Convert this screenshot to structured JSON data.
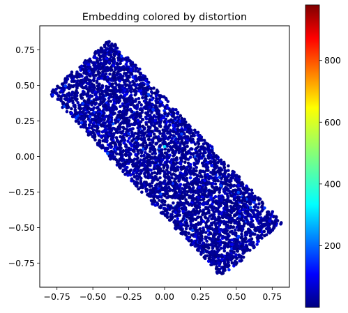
{
  "chart_data": {
    "type": "scatter",
    "title": "Embedding colored by distortion",
    "xlabel": "",
    "ylabel": "",
    "xlim": [
      -0.87,
      0.87
    ],
    "ylim": [
      -0.92,
      0.92
    ],
    "xticks": [
      -0.75,
      -0.5,
      -0.25,
      0.0,
      0.25,
      0.5,
      0.75
    ],
    "xtick_labels": [
      "−0.75",
      "−0.50",
      "−0.25",
      "0.00",
      "0.25",
      "0.50",
      "0.75"
    ],
    "yticks": [
      -0.75,
      -0.5,
      -0.25,
      0.0,
      0.25,
      0.5,
      0.75
    ],
    "ytick_labels": [
      "−0.75",
      "−0.50",
      "−0.25",
      "0.00",
      "0.25",
      "0.50",
      "0.75"
    ],
    "grid": false,
    "point_region": {
      "shape": "rotated-rectangle",
      "corners": [
        [
          -0.8,
          0.45
        ],
        [
          -0.38,
          0.83
        ],
        [
          0.82,
          -0.48
        ],
        [
          0.4,
          -0.85
        ]
      ],
      "note_value_range": "most points have distortion values near 0 to 100"
    },
    "highlight_points": [
      {
        "x": 0.0,
        "y": 0.07,
        "value": 330
      },
      {
        "x": -0.08,
        "y": 0.33,
        "value": 170
      },
      {
        "x": 0.6,
        "y": -0.36,
        "value": 190
      },
      {
        "x": -0.52,
        "y": 0.28,
        "value": 150
      },
      {
        "x": 0.18,
        "y": -0.15,
        "value": 140
      }
    ],
    "colorbar": {
      "colormap": "jet",
      "min": 0,
      "max": 980,
      "ticks": [
        200,
        400,
        600,
        800
      ],
      "tick_labels": [
        "200",
        "400",
        "600",
        "800"
      ]
    }
  }
}
